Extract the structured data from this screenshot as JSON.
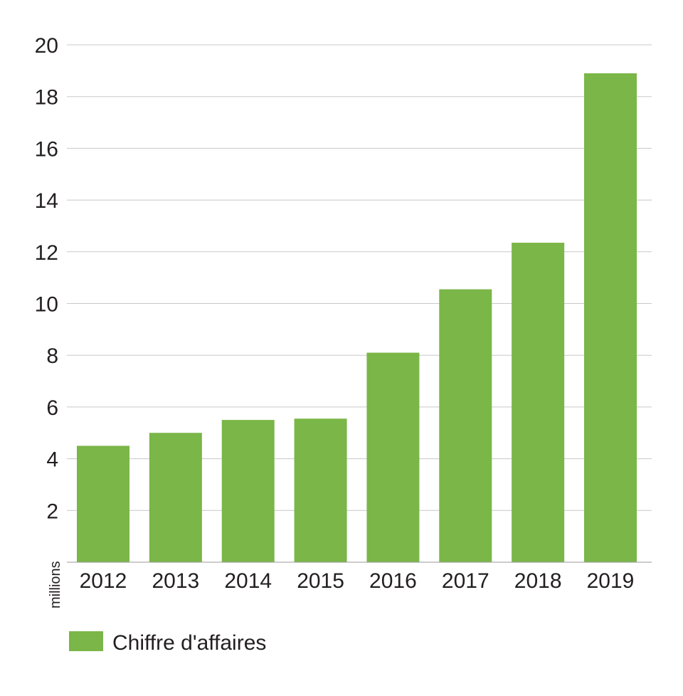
{
  "chart_data": {
    "type": "bar",
    "title": "",
    "xlabel": "",
    "ylabel": "millions",
    "categories": [
      "2012",
      "2013",
      "2014",
      "2015",
      "2016",
      "2017",
      "2018",
      "2019"
    ],
    "series": [
      {
        "name": "Chiffre d'affaires",
        "values": [
          4.5,
          5.0,
          5.5,
          5.55,
          8.1,
          10.55,
          12.35,
          18.9
        ],
        "color": "#7ab648"
      }
    ],
    "ylim": [
      0,
      20
    ],
    "yticks": [
      2,
      4,
      6,
      8,
      10,
      12,
      14,
      16,
      18,
      20
    ],
    "grid": true,
    "legend_position": "bottom-left"
  }
}
